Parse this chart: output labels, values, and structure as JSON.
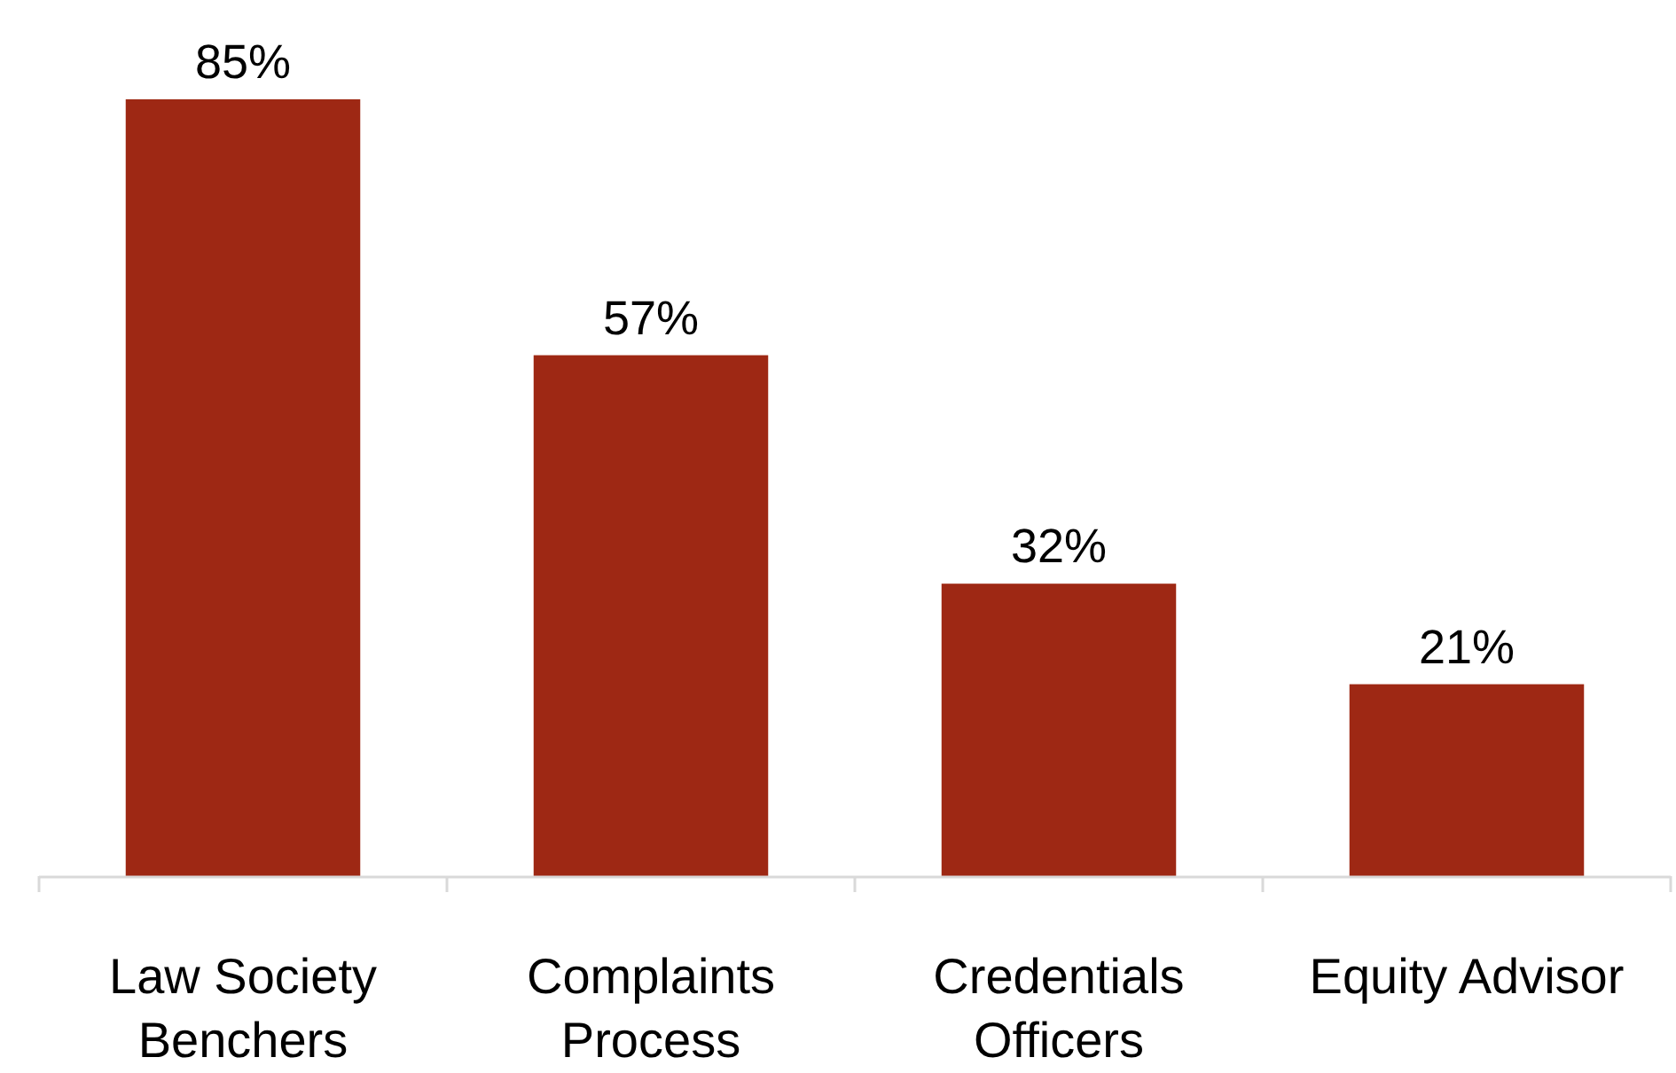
{
  "chart_data": {
    "type": "bar",
    "categories": [
      "Law Society Benchers",
      "Complaints Process",
      "Credentials Officers",
      "Equity Advisor"
    ],
    "values": [
      85,
      57,
      32,
      21
    ],
    "color": "#9e2814",
    "value_labels": [
      "85%",
      "57%",
      "32%",
      "21%"
    ]
  }
}
